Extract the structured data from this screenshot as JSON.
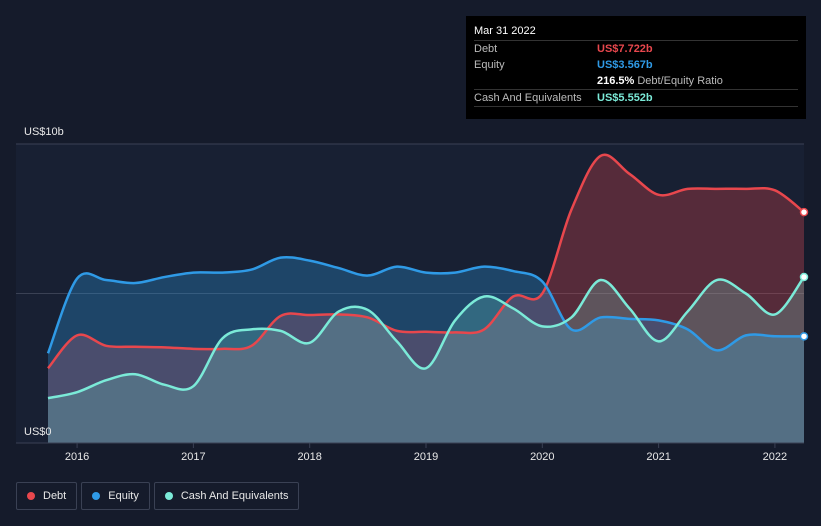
{
  "tooltip": {
    "date": "Mar 31 2022",
    "rows": [
      {
        "label": "Debt",
        "value": "US$7.722b",
        "color": "#e8474d"
      },
      {
        "label": "Equity",
        "value": "US$3.567b",
        "color": "#2f9ae6"
      },
      {
        "label": "",
        "value": "216.5%",
        "sub": "Debt/Equity Ratio",
        "color": "#ffffff"
      },
      {
        "label": "Cash And Equivalents",
        "value": "US$5.552b",
        "color": "#7bead8"
      }
    ]
  },
  "legend": [
    {
      "label": "Debt",
      "color": "#e8474d"
    },
    {
      "label": "Equity",
      "color": "#2f9ae6"
    },
    {
      "label": "Cash And Equivalents",
      "color": "#7bead8"
    }
  ],
  "chart_data": {
    "type": "area",
    "title": "",
    "ylabel_top": "US$10b",
    "ylabel_bottom": "US$0",
    "ylim": [
      0,
      10
    ],
    "xlim": [
      2015.75,
      2022.25
    ],
    "x_ticks": [
      2016,
      2017,
      2018,
      2019,
      2020,
      2021,
      2022
    ],
    "x_tick_labels": [
      "2016",
      "2017",
      "2018",
      "2019",
      "2020",
      "2021",
      "2022"
    ],
    "series": [
      {
        "name": "Debt",
        "color": "#e8474d",
        "x": [
          2015.75,
          2016.0,
          2016.25,
          2016.5,
          2016.75,
          2017.0,
          2017.25,
          2017.5,
          2017.75,
          2018.0,
          2018.25,
          2018.5,
          2018.75,
          2019.0,
          2019.25,
          2019.5,
          2019.75,
          2020.0,
          2020.25,
          2020.5,
          2020.75,
          2021.0,
          2021.25,
          2021.5,
          2021.75,
          2022.0,
          2022.25
        ],
        "values": [
          2.5,
          3.6,
          3.25,
          3.22,
          3.2,
          3.15,
          3.15,
          3.25,
          4.25,
          4.28,
          4.3,
          4.2,
          3.75,
          3.72,
          3.7,
          3.8,
          4.9,
          5.0,
          7.8,
          9.6,
          9.0,
          8.3,
          8.5,
          8.5,
          8.5,
          8.45,
          7.72
        ]
      },
      {
        "name": "Equity",
        "color": "#2f9ae6",
        "x": [
          2015.75,
          2016.0,
          2016.25,
          2016.5,
          2016.75,
          2017.0,
          2017.25,
          2017.5,
          2017.75,
          2018.0,
          2018.25,
          2018.5,
          2018.75,
          2019.0,
          2019.25,
          2019.5,
          2019.75,
          2020.0,
          2020.25,
          2020.5,
          2020.75,
          2021.0,
          2021.25,
          2021.5,
          2021.75,
          2022.0,
          2022.25
        ],
        "values": [
          3.0,
          5.5,
          5.45,
          5.35,
          5.55,
          5.7,
          5.7,
          5.8,
          6.2,
          6.1,
          5.85,
          5.6,
          5.9,
          5.7,
          5.7,
          5.9,
          5.75,
          5.4,
          3.8,
          4.2,
          4.15,
          4.1,
          3.8,
          3.1,
          3.6,
          3.57,
          3.567
        ]
      },
      {
        "name": "Cash And Equivalents",
        "color": "#7bead8",
        "x": [
          2015.75,
          2016.0,
          2016.25,
          2016.5,
          2016.75,
          2017.0,
          2017.25,
          2017.5,
          2017.75,
          2018.0,
          2018.25,
          2018.5,
          2018.75,
          2019.0,
          2019.25,
          2019.5,
          2019.75,
          2020.0,
          2020.25,
          2020.5,
          2020.75,
          2021.0,
          2021.25,
          2021.5,
          2021.75,
          2022.0,
          2022.25
        ],
        "values": [
          1.5,
          1.7,
          2.1,
          2.3,
          1.95,
          1.9,
          3.5,
          3.8,
          3.75,
          3.35,
          4.4,
          4.45,
          3.4,
          2.5,
          4.1,
          4.9,
          4.5,
          3.9,
          4.2,
          5.45,
          4.5,
          3.4,
          4.4,
          5.45,
          5.0,
          4.3,
          5.552
        ]
      }
    ],
    "gridlines_at": [
      5,
      10
    ]
  }
}
